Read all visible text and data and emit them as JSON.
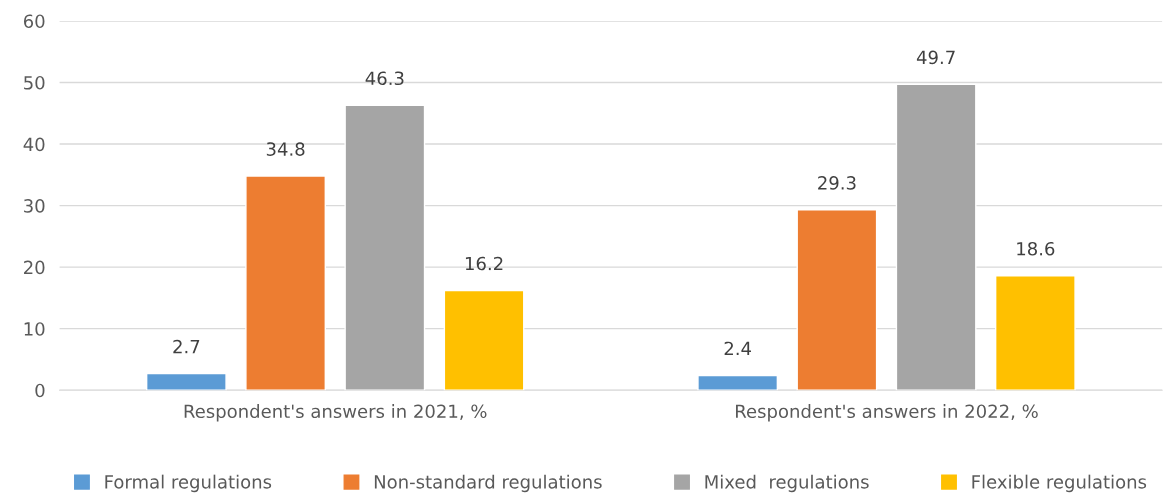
{
  "chart_data": {
    "type": "bar",
    "categories": [
      "Respondent's answers in 2021, %",
      "Respondent's answers in 2022, %"
    ],
    "series": [
      {
        "name": "Formal regulations",
        "color": "#5b9bd5",
        "values": [
          2.7,
          2.4
        ]
      },
      {
        "name": "Non-standard regulations",
        "color": "#ed7d31",
        "values": [
          34.8,
          29.3
        ]
      },
      {
        "name": "Mixed  regulations",
        "color": "#a5a5a5",
        "values": [
          46.3,
          49.7
        ]
      },
      {
        "name": "Flexible regulations",
        "color": "#ffc000",
        "values": [
          16.2,
          18.6
        ]
      }
    ],
    "ylim": [
      0,
      60
    ],
    "yticks": [
      0,
      10,
      20,
      30,
      40,
      50,
      60
    ],
    "grid": "y",
    "legend": "bottom",
    "data_labels": true
  }
}
